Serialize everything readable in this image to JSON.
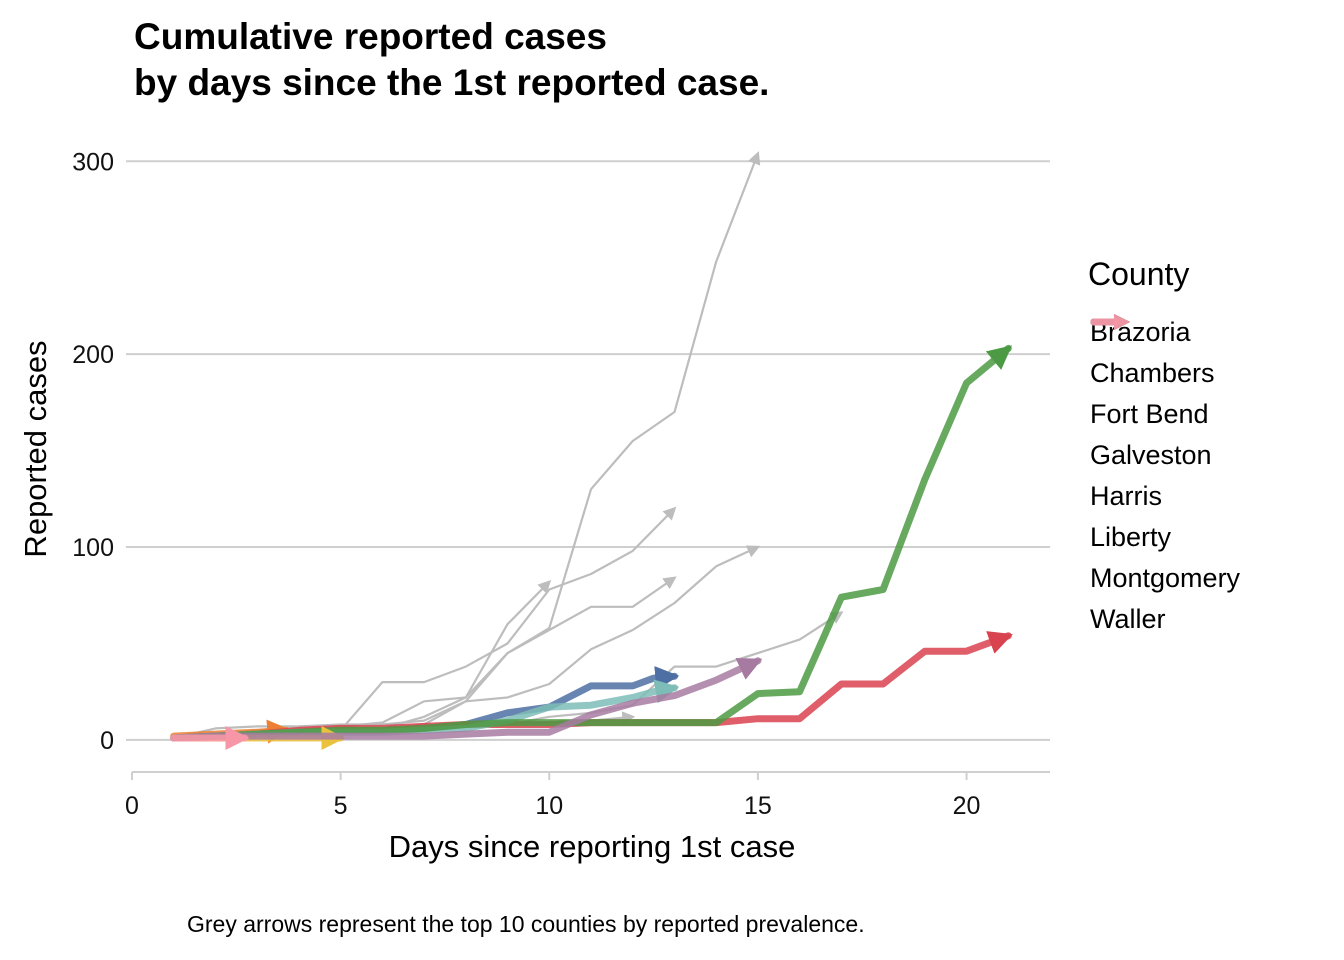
{
  "chart_data": {
    "type": "line",
    "title_lines": [
      "Cumulative reported cases",
      "by days since the 1st reported case."
    ],
    "xlabel": "Days since reporting 1st case",
    "ylabel": "Reported cases",
    "caption": "Grey arrows represent the top 10 counties by reported prevalence.",
    "xlim": [
      0,
      22
    ],
    "ylim": [
      -13,
      310
    ],
    "x_ticks": [
      0,
      5,
      10,
      15,
      20
    ],
    "y_ticks": [
      0,
      100,
      200,
      300
    ],
    "grid": "horizontal",
    "legend_title": "County",
    "legend_position": "right",
    "grey_series": [
      {
        "x": [
          1,
          2,
          3,
          4,
          5,
          6,
          7,
          8,
          9,
          10,
          11,
          12,
          13,
          14,
          15
        ],
        "y": [
          1,
          6,
          7,
          7,
          8,
          8,
          10,
          20,
          45,
          58,
          130,
          155,
          170,
          248,
          304
        ]
      },
      {
        "x": [
          1,
          2,
          3,
          4,
          5,
          6,
          7,
          8,
          9,
          10
        ],
        "y": [
          1,
          3,
          5,
          6,
          7,
          9,
          20,
          22,
          60,
          82
        ]
      },
      {
        "x": [
          1,
          2,
          3,
          4,
          5,
          6,
          7,
          8,
          9,
          10,
          11,
          12,
          13
        ],
        "y": [
          1,
          2,
          3,
          4,
          5,
          30,
          30,
          38,
          50,
          78,
          86,
          98,
          120
        ]
      },
      {
        "x": [
          1,
          2,
          3,
          4,
          5,
          6,
          7,
          8,
          9,
          10,
          11,
          12,
          13
        ],
        "y": [
          1,
          2,
          3,
          4,
          5,
          6,
          12,
          22,
          45,
          57,
          69,
          69,
          84
        ]
      },
      {
        "x": [
          1,
          2,
          3,
          4,
          5,
          6,
          7,
          8,
          9,
          10,
          11,
          12,
          13,
          14,
          15
        ],
        "y": [
          1,
          2,
          3,
          4,
          5,
          6,
          8,
          20,
          22,
          29,
          47,
          57,
          71,
          90,
          100
        ]
      },
      {
        "x": [
          1,
          2,
          3,
          4,
          5,
          6,
          7,
          8,
          9,
          10,
          11,
          12,
          13,
          14,
          15,
          16,
          17
        ],
        "y": [
          1,
          2,
          3,
          3,
          4,
          5,
          6,
          7,
          8,
          12,
          14,
          18,
          38,
          38,
          45,
          52,
          66
        ]
      },
      {
        "x": [
          1,
          2,
          3,
          4,
          5,
          6,
          7,
          8,
          9,
          10,
          11,
          12
        ],
        "y": [
          1,
          2,
          3,
          3,
          4,
          5,
          6,
          7,
          8,
          9,
          10,
          12
        ]
      }
    ],
    "series": [
      {
        "name": "Brazoria",
        "color": "#4e6fa3",
        "x": [
          1,
          2,
          3,
          4,
          5,
          6,
          7,
          8,
          9,
          10,
          11,
          12,
          12.5,
          13
        ],
        "y": [
          1,
          2,
          3,
          4,
          5,
          5,
          6,
          8,
          14,
          17,
          28,
          28,
          32,
          33
        ]
      },
      {
        "name": "Chambers",
        "color": "#ec7f33",
        "x": [
          1,
          2,
          3,
          3.7
        ],
        "y": [
          2,
          3,
          4,
          5
        ]
      },
      {
        "name": "Fort Bend",
        "color": "#d9424f",
        "x": [
          1,
          2,
          3,
          4,
          5,
          6,
          7,
          8,
          9,
          10,
          11,
          12,
          13,
          14,
          15,
          16,
          17,
          18,
          19,
          20,
          21
        ],
        "y": [
          1,
          2,
          3,
          5,
          6,
          6,
          7,
          8,
          8,
          8,
          9,
          9,
          9,
          9,
          11,
          11,
          29,
          29,
          46,
          46,
          54
        ]
      },
      {
        "name": "Galveston",
        "color": "#7ebdb7",
        "x": [
          1,
          2,
          3,
          4,
          5,
          6,
          7,
          8,
          9,
          10,
          11,
          12,
          12.5,
          13
        ],
        "y": [
          1,
          2,
          3,
          4,
          4,
          4,
          5,
          6,
          10,
          17,
          18,
          22,
          25,
          27
        ]
      },
      {
        "name": "Harris",
        "color": "#4c9a43",
        "x": [
          1,
          2,
          3,
          4,
          5,
          6,
          7,
          8,
          9,
          10,
          11,
          12,
          13,
          14,
          15,
          16,
          17,
          18,
          19,
          20,
          21
        ],
        "y": [
          1,
          2,
          3,
          4,
          5,
          5,
          6,
          8,
          9,
          9,
          9,
          9,
          9,
          9,
          24,
          25,
          74,
          78,
          135,
          185,
          203
        ]
      },
      {
        "name": "Liberty",
        "color": "#ebc23e",
        "x": [
          1,
          2,
          3,
          4,
          5
        ],
        "y": [
          1,
          1,
          1,
          1,
          1
        ]
      },
      {
        "name": "Montgomery",
        "color": "#a77ba1",
        "x": [
          1,
          2,
          3,
          4,
          5,
          6,
          7,
          8,
          9,
          10,
          11,
          12,
          13,
          14,
          15
        ],
        "y": [
          1,
          2,
          2,
          2,
          2,
          2,
          2,
          3,
          4,
          4,
          13,
          19,
          23,
          31,
          41
        ]
      },
      {
        "name": "Waller",
        "color": "#f796a6",
        "x": [
          1,
          2,
          2.7
        ],
        "y": [
          1,
          1,
          1
        ]
      }
    ]
  }
}
